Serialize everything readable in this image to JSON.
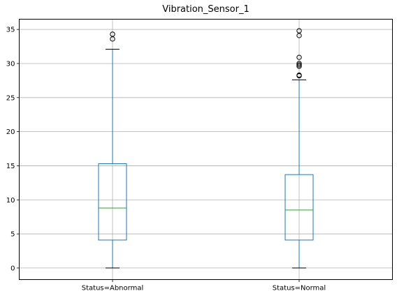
{
  "chart_data": {
    "type": "box",
    "title": "Vibration_Sensor_1",
    "xlabel": "",
    "ylabel": "",
    "categories": [
      "Status=Abnormal",
      "Status=Normal"
    ],
    "ylim": [
      -1.7,
      36.5
    ],
    "yticks": [
      0,
      5,
      10,
      15,
      20,
      25,
      30,
      35
    ],
    "grid": true,
    "boxes": [
      {
        "name": "Status=Abnormal",
        "whislo": 0,
        "q1": 4.1,
        "med": 8.8,
        "q3": 15.3,
        "whishi": 32.1,
        "fliers": [
          33.6,
          34.3
        ]
      },
      {
        "name": "Status=Normal",
        "whislo": 0,
        "q1": 4.1,
        "med": 8.5,
        "q3": 13.7,
        "whishi": 27.6,
        "fliers": [
          28.2,
          28.3,
          29.6,
          29.8,
          30.0,
          30.9,
          34.1,
          34.8
        ]
      }
    ],
    "colors": {
      "box": "#1f77b4",
      "median": "#2ca02c",
      "whisker": "#1f77b4",
      "cap": "#000000",
      "flier": "#000000",
      "grid": "#b0b0b0",
      "axis": "#000000"
    }
  }
}
